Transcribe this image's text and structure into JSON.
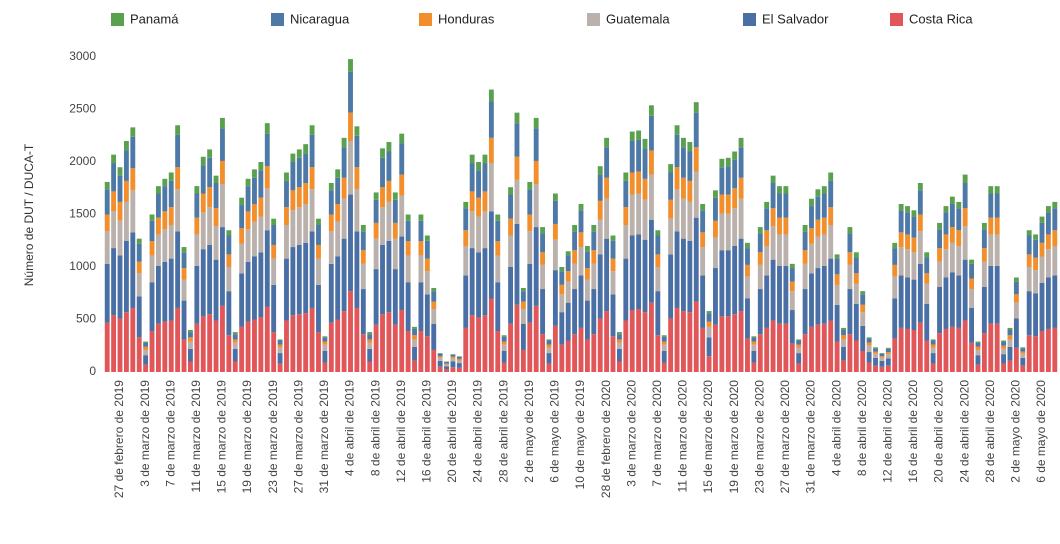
{
  "chart_data": {
    "type": "stacked_bar",
    "y_label": "Número de DUT / DUCA-T",
    "legend": "top",
    "grid": false,
    "ylim": [
      0,
      3000
    ],
    "yticks": [
      0,
      500,
      1000,
      1500,
      2000,
      2500,
      3000
    ],
    "categories": [
      null,
      null,
      "27 de febrero de 2019",
      null,
      null,
      null,
      "3 de marzo de 2019",
      null,
      null,
      null,
      "7 de marzo de 2019",
      null,
      null,
      null,
      "11 de marzo de 2019",
      null,
      null,
      null,
      "15 de marzo de 2019",
      null,
      null,
      null,
      "19 de marzo de 2019",
      null,
      null,
      null,
      "23 de marzo de 2019",
      null,
      null,
      null,
      "27 de marzo de 2019",
      null,
      null,
      null,
      "31 de marzo de 2019",
      null,
      null,
      null,
      "4 de abril de 2019",
      null,
      null,
      null,
      "8 de abril de 2019",
      null,
      null,
      null,
      "12 de abril de 2019",
      null,
      null,
      null,
      "16 de abril de 2019",
      null,
      null,
      null,
      "20 de abril de 2019",
      null,
      null,
      null,
      "24 de abril de 2019",
      null,
      null,
      null,
      "28 de abril de 2019",
      null,
      null,
      null,
      "2 de mayo de 2019",
      null,
      null,
      null,
      "6 de mayo de 2019",
      null,
      null,
      null,
      "10 de mayo de 2019",
      null,
      null,
      null,
      "28 de febrero de 2020",
      null,
      null,
      null,
      "3 de marzo de 2020",
      null,
      null,
      null,
      "7 de marzo de 2020",
      null,
      null,
      null,
      "11 de marzo de 2020",
      null,
      null,
      null,
      "15 de marzo de 2020",
      null,
      null,
      null,
      "19 de marzo de 2020",
      null,
      null,
      null,
      "23 de marzo de 2020",
      null,
      null,
      null,
      "27 de marzo de 2020",
      null,
      null,
      null,
      "31 de marzo de 2020",
      null,
      null,
      null,
      "4 de abril de 2020",
      null,
      null,
      null,
      "8 de abril de 2020",
      null,
      null,
      null,
      "12 de abril de 2020",
      null,
      null,
      null,
      "16 de abril de 2020",
      null,
      null,
      null,
      "20 de abril de 2020",
      null,
      null,
      null,
      "24 de abril de 2020",
      null,
      null,
      null,
      "28 de abril de 2020",
      null,
      null,
      null,
      "2 de mayo de 2020",
      null,
      null,
      null,
      "6 de mayo de 2020",
      null,
      null
    ],
    "series": [
      {
        "name": "Panamá",
        "color": "#59a14f",
        "values": [
          70,
          80,
          80,
          90,
          90,
          50,
          10,
          60,
          70,
          70,
          80,
          90,
          50,
          20,
          70,
          80,
          80,
          70,
          100,
          50,
          20,
          70,
          70,
          80,
          80,
          100,
          60,
          10,
          80,
          80,
          80,
          90,
          90,
          60,
          10,
          70,
          80,
          90,
          120,
          90,
          60,
          20,
          70,
          90,
          90,
          70,
          90,
          60,
          20,
          60,
          50,
          30,
          5,
          5,
          5,
          5,
          60,
          80,
          80,
          80,
          110,
          60,
          10,
          70,
          100,
          30,
          70,
          100,
          60,
          10,
          70,
          40,
          40,
          60,
          60,
          50,
          60,
          80,
          90,
          50,
          20,
          80,
          90,
          90,
          90,
          100,
          50,
          10,
          80,
          90,
          90,
          90,
          100,
          60,
          20,
          70,
          80,
          80,
          80,
          90,
          50,
          10,
          60,
          60,
          70,
          70,
          70,
          40,
          10,
          60,
          70,
          70,
          70,
          80,
          40,
          20,
          60,
          50,
          30,
          10,
          10,
          5,
          10,
          50,
          60,
          60,
          60,
          70,
          50,
          10,
          60,
          60,
          70,
          60,
          80,
          40,
          10,
          60,
          70,
          70,
          10,
          20,
          40,
          10,
          50,
          50,
          60,
          60,
          60
        ]
      },
      {
        "name": "Nicaragua",
        "color": "#4e79a7",
        "values": [
          240,
          270,
          250,
          290,
          300,
          170,
          40,
          195,
          230,
          240,
          250,
          310,
          150,
          50,
          230,
          270,
          280,
          240,
          310,
          180,
          50,
          220,
          240,
          250,
          260,
          310,
          190,
          40,
          250,
          270,
          280,
          280,
          310,
          190,
          40,
          230,
          250,
          290,
          390,
          300,
          180,
          50,
          220,
          280,
          280,
          220,
          300,
          195,
          60,
          195,
          170,
          100,
          25,
          15,
          20,
          20,
          210,
          270,
          260,
          270,
          350,
          195,
          50,
          230,
          320,
          100,
          240,
          310,
          180,
          40,
          220,
          130,
          150,
          180,
          210,
          160,
          180,
          250,
          290,
          170,
          50,
          250,
          300,
          300,
          290,
          330,
          180,
          50,
          260,
          310,
          290,
          280,
          330,
          210,
          80,
          220,
          260,
          270,
          270,
          290,
          160,
          40,
          180,
          210,
          240,
          230,
          230,
          130,
          40,
          180,
          210,
          220,
          230,
          250,
          150,
          50,
          180,
          150,
          100,
          40,
          30,
          25,
          30,
          160,
          210,
          210,
          200,
          230,
          150,
          40,
          180,
          210,
          220,
          210,
          240,
          140,
          40,
          180,
          230,
          230,
          40,
          50,
          120,
          30,
          180,
          170,
          190,
          210,
          210
        ]
      },
      {
        "name": "Honduras",
        "color": "#f28e2b",
        "values": [
          160,
          190,
          180,
          200,
          210,
          110,
          30,
          135,
          160,
          170,
          170,
          210,
          110,
          40,
          160,
          180,
          190,
          170,
          220,
          120,
          30,
          150,
          170,
          170,
          180,
          210,
          130,
          30,
          170,
          190,
          190,
          200,
          210,
          130,
          30,
          160,
          170,
          200,
          270,
          210,
          130,
          30,
          150,
          190,
          200,
          150,
          200,
          135,
          40,
          135,
          120,
          70,
          15,
          10,
          15,
          15,
          150,
          190,
          180,
          190,
          240,
          135,
          30,
          160,
          220,
          70,
          160,
          220,
          120,
          30,
          150,
          90,
          100,
          130,
          140,
          110,
          130,
          180,
          200,
          120,
          30,
          170,
          210,
          210,
          200,
          230,
          120,
          30,
          180,
          210,
          200,
          200,
          230,
          140,
          50,
          160,
          180,
          180,
          190,
          200,
          110,
          30,
          120,
          150,
          170,
          160,
          160,
          90,
          30,
          130,
          150,
          160,
          160,
          170,
          100,
          40,
          120,
          100,
          70,
          30,
          20,
          15,
          20,
          110,
          140,
          140,
          140,
          160,
          100,
          30,
          130,
          140,
          150,
          150,
          170,
          100,
          30,
          130,
          160,
          160,
          30,
          40,
          80,
          20,
          120,
          120,
          130,
          140,
          150
        ]
      },
      {
        "name": "Guatemala",
        "color": "#bab0ac",
        "values": [
          310,
          350,
          330,
          370,
          400,
          220,
          50,
          255,
          300,
          310,
          320,
          400,
          200,
          70,
          300,
          350,
          360,
          320,
          410,
          230,
          60,
          280,
          310,
          330,
          340,
          400,
          250,
          50,
          320,
          350,
          360,
          370,
          400,
          250,
          60,
          310,
          330,
          380,
          510,
          400,
          240,
          60,
          290,
          360,
          370,
          290,
          390,
          255,
          70,
          255,
          220,
          140,
          30,
          15,
          30,
          25,
          280,
          350,
          340,
          350,
          460,
          255,
          60,
          300,
          420,
          140,
          310,
          410,
          230,
          50,
          290,
          170,
          200,
          240,
          270,
          200,
          240,
          330,
          380,
          220,
          60,
          320,
          390,
          390,
          380,
          430,
          230,
          60,
          340,
          400,
          380,
          370,
          440,
          270,
          100,
          290,
          350,
          350,
          360,
          380,
          210,
          60,
          230,
          280,
          320,
          300,
          300,
          180,
          50,
          240,
          280,
          300,
          300,
          320,
          190,
          70,
          230,
          190,
          130,
          60,
          40,
          30,
          40,
          210,
          270,
          270,
          260,
          310,
          190,
          50,
          240,
          270,
          280,
          280,
          320,
          180,
          50,
          240,
          300,
          300,
          50,
          70,
          150,
          40,
          230,
          220,
          250,
          270,
          280
        ]
      },
      {
        "name": "El Salvador",
        "color": "#4a6fa5",
        "values": [
          560,
          640,
          600,
          680,
          720,
          390,
          90,
          465,
          550,
          570,
          590,
          730,
          370,
          120,
          550,
          640,
          660,
          580,
          750,
          420,
          120,
          510,
          570,
          600,
          620,
          730,
          450,
          100,
          590,
          650,
          660,
          670,
          730,
          450,
          110,
          560,
          600,
          690,
          920,
          730,
          430,
          120,
          530,
          660,
          680,
          530,
          700,
          465,
          130,
          465,
          400,
          250,
          55,
          30,
          55,
          45,
          500,
          640,
          620,
          640,
          830,
          465,
          110,
          540,
          770,
          250,
          560,
          750,
          430,
          100,
          530,
          310,
          360,
          430,
          500,
          370,
          430,
          610,
          690,
          400,
          120,
          590,
          710,
          710,
          690,
          790,
          420,
          110,
          610,
          730,
          690,
          680,
          800,
          500,
          180,
          540,
          630,
          630,
          650,
          690,
          380,
          110,
          430,
          500,
          580,
          550,
          550,
          320,
          100,
          430,
          510,
          540,
          550,
          590,
          350,
          130,
          430,
          350,
          240,
          100,
          75,
          55,
          70,
          380,
          500,
          490,
          480,
          560,
          350,
          100,
          440,
          490,
          520,
          500,
          580,
          330,
          90,
          440,
          550,
          550,
          90,
          130,
          280,
          75,
          420,
          410,
          460,
          490,
          500
        ]
      },
      {
        "name": "Costa Rica",
        "color": "#e15759",
        "values": [
          470,
          540,
          510,
          570,
          610,
          330,
          70,
          390,
          460,
          480,
          490,
          610,
          310,
          100,
          460,
          530,
          550,
          490,
          630,
          350,
          100,
          430,
          480,
          500,
          520,
          620,
          380,
          80,
          490,
          540,
          550,
          560,
          610,
          380,
          90,
          470,
          500,
          580,
          770,
          610,
          360,
          100,
          450,
          550,
          570,
          450,
          590,
          390,
          110,
          390,
          340,
          210,
          50,
          25,
          45,
          40,
          420,
          540,
          520,
          540,
          700,
          390,
          90,
          460,
          640,
          210,
          470,
          630,
          360,
          80,
          440,
          260,
          300,
          360,
          420,
          310,
          360,
          510,
          580,
          340,
          100,
          490,
          590,
          600,
          570,
          660,
          350,
          90,
          510,
          610,
          580,
          570,
          670,
          420,
          150,
          450,
          530,
          530,
          550,
          580,
          320,
          90,
          360,
          420,
          490,
          460,
          460,
          270,
          80,
          360,
          430,
          450,
          460,
          490,
          290,
          110,
          360,
          300,
          200,
          90,
          60,
          50,
          60,
          320,
          420,
          410,
          400,
          470,
          300,
          80,
          370,
          410,
          430,
          420,
          490,
          280,
          70,
          370,
          460,
          460,
          80,
          110,
          230,
          60,
          350,
          340,
          390,
          410,
          420
        ]
      }
    ]
  }
}
